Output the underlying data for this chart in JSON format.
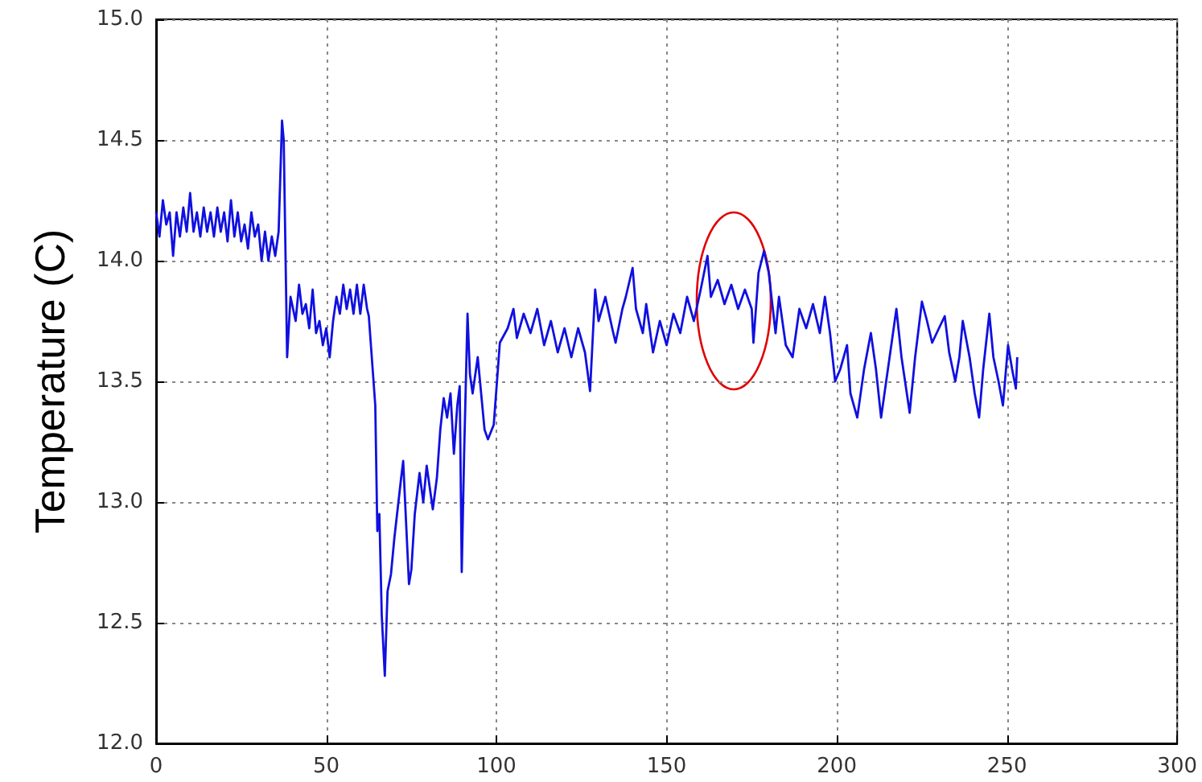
{
  "chart_data": {
    "type": "line",
    "ylabel": "Temperature (C)",
    "marker": "none",
    "line_style": "solid",
    "grid": true,
    "xlim": [
      0,
      300
    ],
    "xticks": [
      0,
      50,
      100,
      150,
      200,
      250,
      300
    ],
    "ylim": [
      12,
      15
    ],
    "yticks": [
      {
        "value": 12,
        "label": "12.0"
      },
      {
        "value": 12.5,
        "label": "12.5"
      },
      {
        "value": 13,
        "label": "13.0"
      },
      {
        "value": 13.5,
        "label": "13.5"
      },
      {
        "value": 14,
        "label": "14.0"
      },
      {
        "value": 14.5,
        "label": "14.5"
      },
      {
        "value": 15,
        "label": "15.0"
      }
    ],
    "series": [
      {
        "color": "#1010e0",
        "x": [
          0,
          1,
          2,
          3,
          4,
          5,
          6,
          7,
          8,
          9,
          10,
          11,
          12,
          13,
          14,
          15,
          16,
          17,
          18,
          19,
          20,
          21,
          22,
          23,
          24,
          25,
          26,
          27,
          28,
          29,
          30,
          31,
          32,
          33,
          34,
          35,
          36,
          37,
          37.5,
          38.5,
          39.5,
          41,
          42,
          43,
          44,
          45,
          46,
          47,
          48,
          49,
          50,
          51,
          52,
          53,
          54,
          55,
          56,
          57,
          58,
          59,
          60,
          61,
          62,
          62.5,
          64.4,
          65,
          65.6,
          66.3,
          67.2,
          68,
          69,
          70,
          72,
          72.6,
          73.5,
          74.3,
          75,
          76,
          77.4,
          78.5,
          79.5,
          81.3,
          82.5,
          83.5,
          84.5,
          85.5,
          86.5,
          87.5,
          88.5,
          89.2,
          89.8,
          90.5,
          91.5,
          92.2,
          93,
          94.5,
          95.5,
          96.5,
          97.5,
          99.2,
          101,
          103.3,
          105,
          106,
          108,
          110,
          112,
          114,
          116,
          118,
          120,
          122,
          124,
          126,
          127.5,
          129,
          130,
          132,
          134,
          135,
          137,
          138,
          140,
          141,
          143,
          144,
          146,
          148,
          150,
          152,
          154,
          156,
          158,
          160,
          162,
          163,
          165,
          167,
          169,
          171,
          173,
          175,
          175.5,
          177,
          178.6,
          180,
          182,
          183,
          185,
          187,
          189,
          191,
          193,
          195,
          196.5,
          198,
          199.5,
          201,
          203,
          204,
          206,
          208,
          210,
          211.5,
          213,
          215,
          217.5,
          219,
          221.4,
          223,
          225,
          226.5,
          228,
          230,
          231.7,
          233,
          234.8,
          236,
          237,
          239,
          240.5,
          241.8,
          243,
          244.8,
          246,
          247.5,
          248.8,
          250.3,
          251.5,
          252.6,
          253
        ],
        "values": [
          14.2,
          14.1,
          14.25,
          14.15,
          14.2,
          14.02,
          14.2,
          14.1,
          14.22,
          14.12,
          14.28,
          14.12,
          14.2,
          14.1,
          14.22,
          14.12,
          14.2,
          14.1,
          14.22,
          14.12,
          14.2,
          14.08,
          14.25,
          14.1,
          14.2,
          14.08,
          14.15,
          14.05,
          14.2,
          14.1,
          14.15,
          14.0,
          14.12,
          14.0,
          14.1,
          14.02,
          14.12,
          14.58,
          14.5,
          13.6,
          13.85,
          13.75,
          13.9,
          13.78,
          13.82,
          13.72,
          13.88,
          13.7,
          13.75,
          13.65,
          13.72,
          13.6,
          13.75,
          13.85,
          13.78,
          13.9,
          13.8,
          13.88,
          13.78,
          13.9,
          13.78,
          13.9,
          13.8,
          13.77,
          13.4,
          12.88,
          12.95,
          12.53,
          12.28,
          12.63,
          12.7,
          12.85,
          13.1,
          13.17,
          12.9,
          12.66,
          12.72,
          12.95,
          13.12,
          13.0,
          13.15,
          12.97,
          13.1,
          13.3,
          13.43,
          13.35,
          13.45,
          13.2,
          13.4,
          13.48,
          12.71,
          13.2,
          13.78,
          13.53,
          13.45,
          13.6,
          13.45,
          13.3,
          13.26,
          13.32,
          13.66,
          13.72,
          13.8,
          13.68,
          13.78,
          13.7,
          13.8,
          13.65,
          13.75,
          13.62,
          13.72,
          13.6,
          13.72,
          13.62,
          13.46,
          13.88,
          13.75,
          13.85,
          13.72,
          13.66,
          13.8,
          13.85,
          13.97,
          13.8,
          13.7,
          13.82,
          13.62,
          13.75,
          13.65,
          13.78,
          13.7,
          13.85,
          13.75,
          13.88,
          14.02,
          13.85,
          13.92,
          13.82,
          13.9,
          13.8,
          13.88,
          13.8,
          13.66,
          13.95,
          14.04,
          13.95,
          13.7,
          13.85,
          13.65,
          13.6,
          13.8,
          13.72,
          13.82,
          13.7,
          13.85,
          13.7,
          13.5,
          13.55,
          13.65,
          13.45,
          13.35,
          13.55,
          13.7,
          13.55,
          13.35,
          13.55,
          13.8,
          13.6,
          13.37,
          13.6,
          13.83,
          13.75,
          13.66,
          13.72,
          13.77,
          13.62,
          13.5,
          13.6,
          13.75,
          13.6,
          13.45,
          13.35,
          13.55,
          13.78,
          13.6,
          13.5,
          13.4,
          13.65,
          13.55,
          13.47,
          13.6
        ]
      }
    ]
  }
}
